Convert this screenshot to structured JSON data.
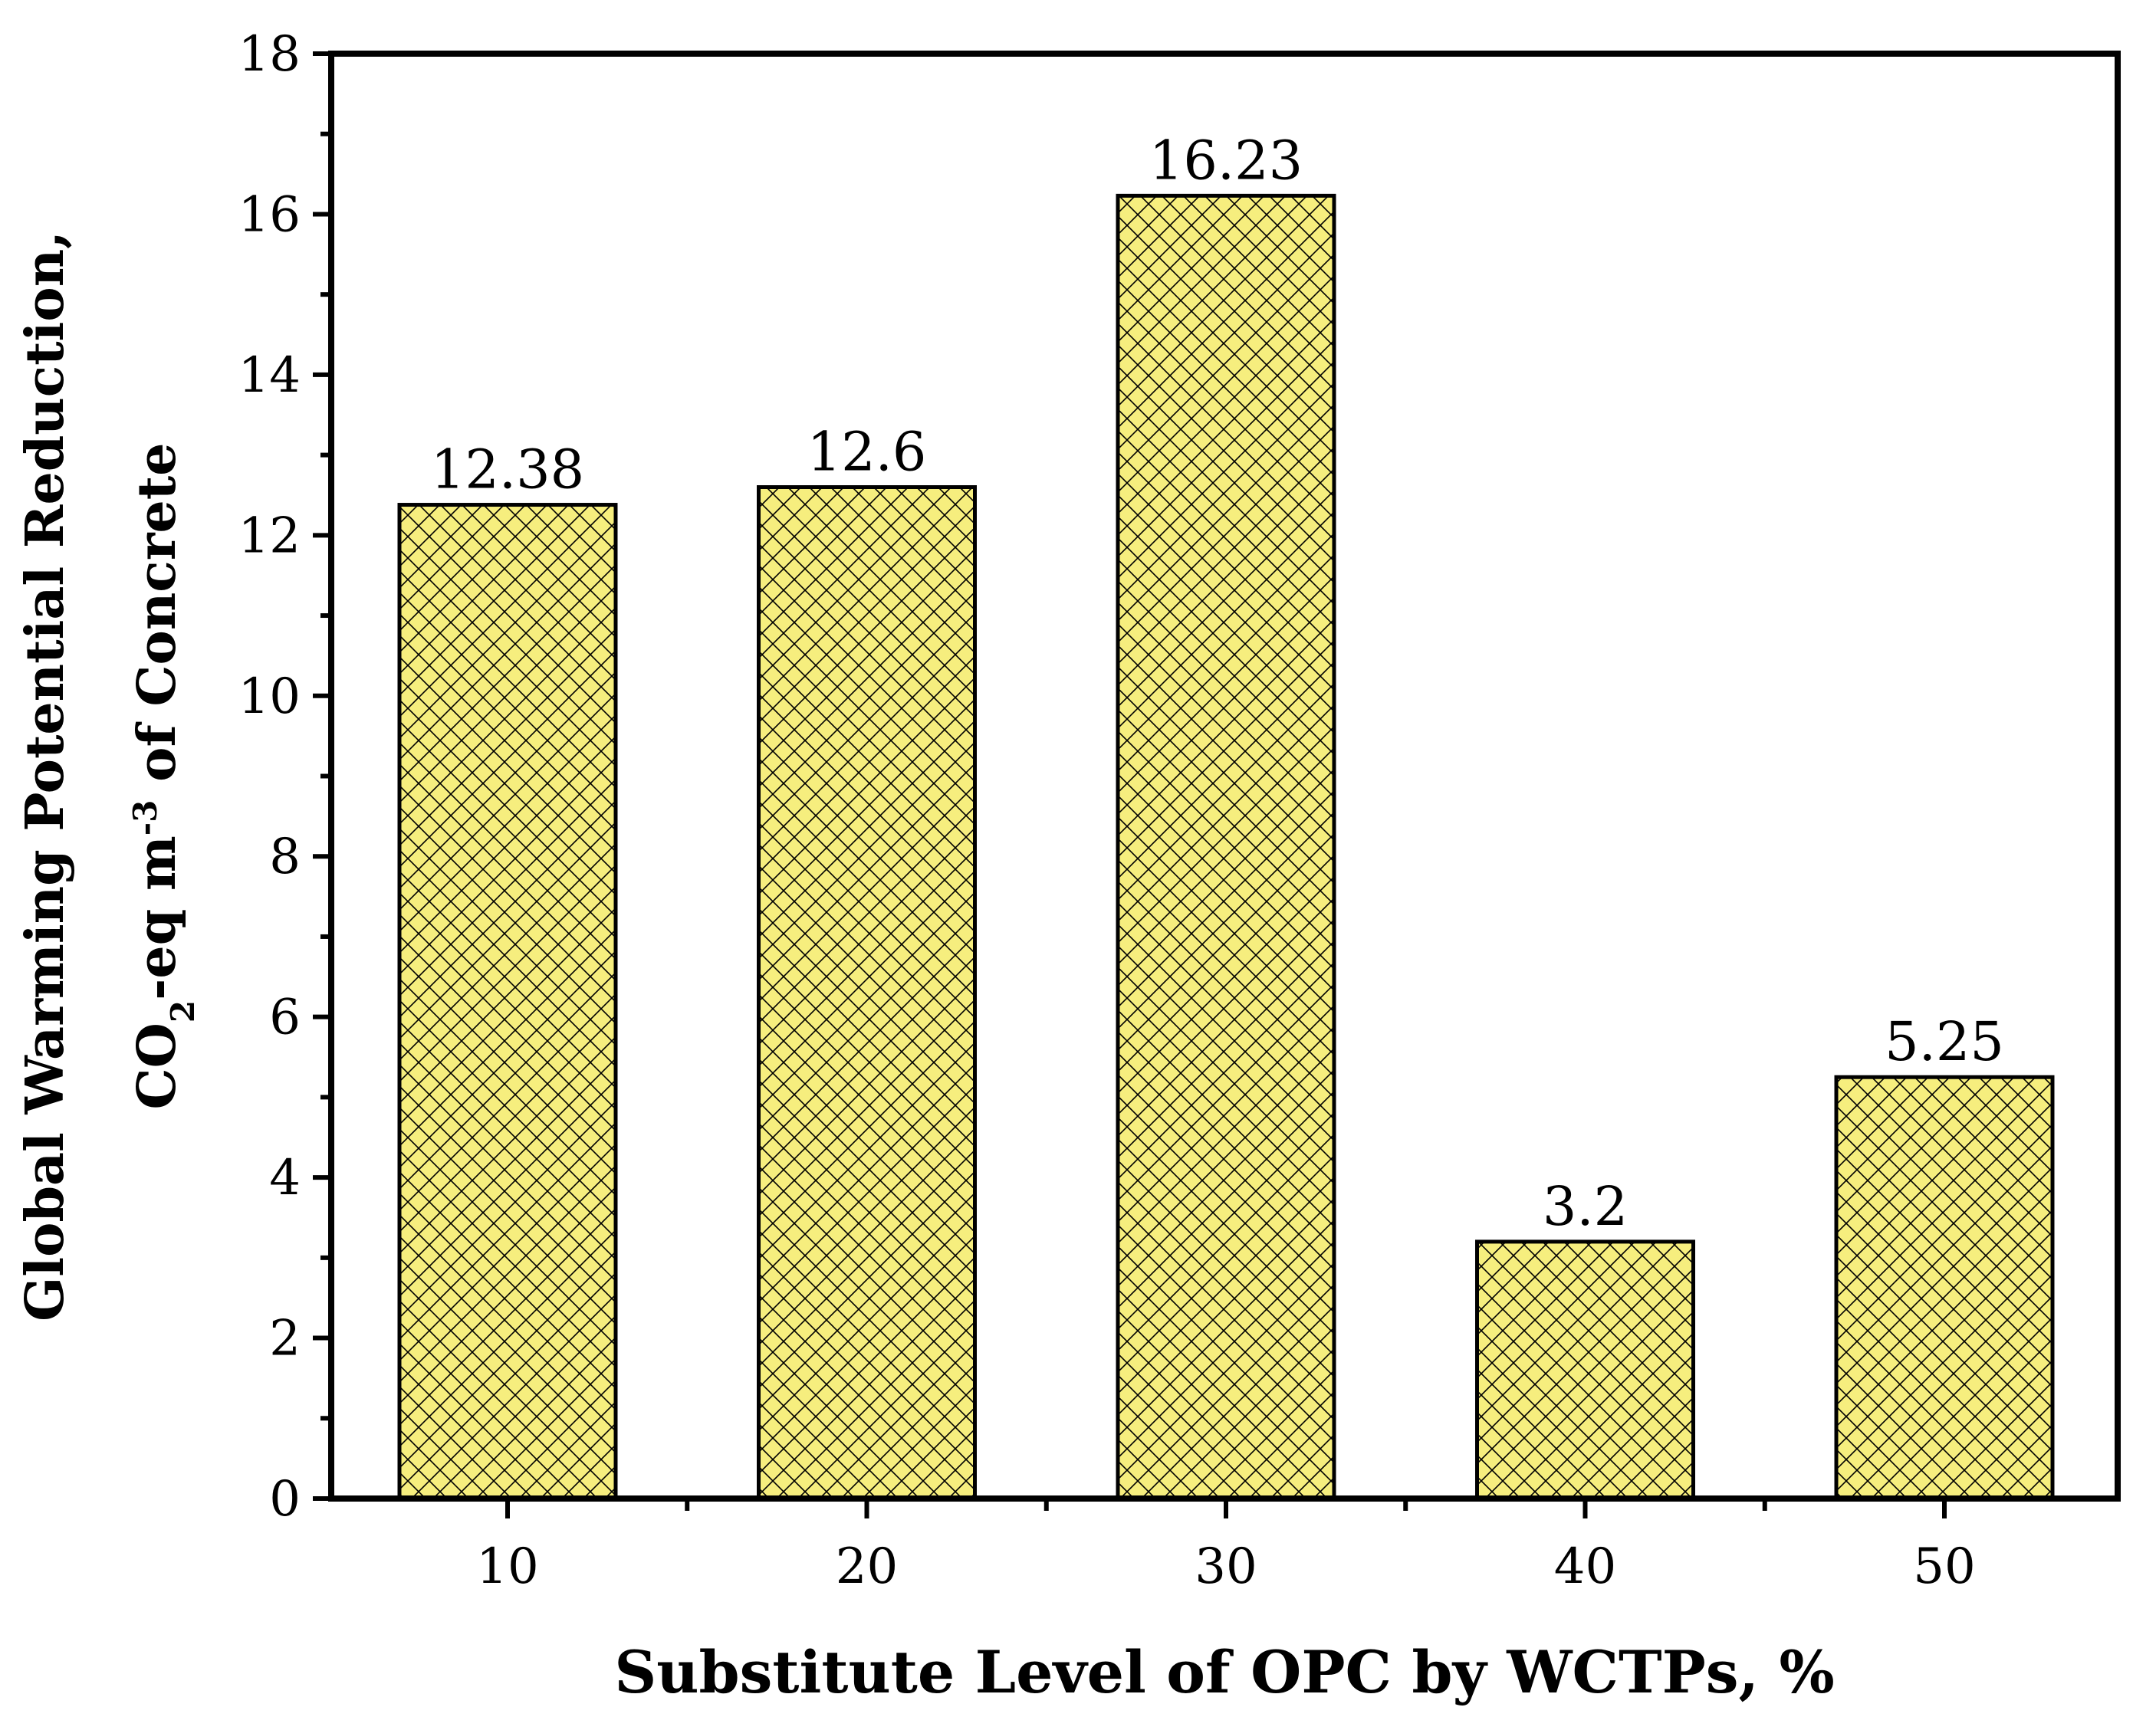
{
  "chart_data": {
    "type": "bar",
    "categories": [
      "10",
      "20",
      "30",
      "40",
      "50"
    ],
    "values": [
      12.38,
      12.6,
      16.23,
      3.2,
      5.25
    ],
    "value_labels": [
      "12.38",
      "12.6",
      "16.23",
      "3.2",
      "5.25"
    ],
    "title": "",
    "xlabel": "Substitute Level of OPC by WCTPs, %",
    "ylabel_line1": "Global Warming Potential Reduction,",
    "ylabel_line2_parts": {
      "a": "CO",
      "sub": "2",
      "b": "-eq m",
      "sup": "-3",
      "c": " of Concrete"
    },
    "ylim": [
      0,
      18
    ],
    "yticks": [
      "0",
      "2",
      "4",
      "6",
      "8",
      "10",
      "12",
      "14",
      "16",
      "18"
    ],
    "grid": false,
    "legend": "none",
    "bar_fill": "#f6ee7e",
    "bar_hatch": "crosshatch",
    "bar_edge": "#000000"
  }
}
